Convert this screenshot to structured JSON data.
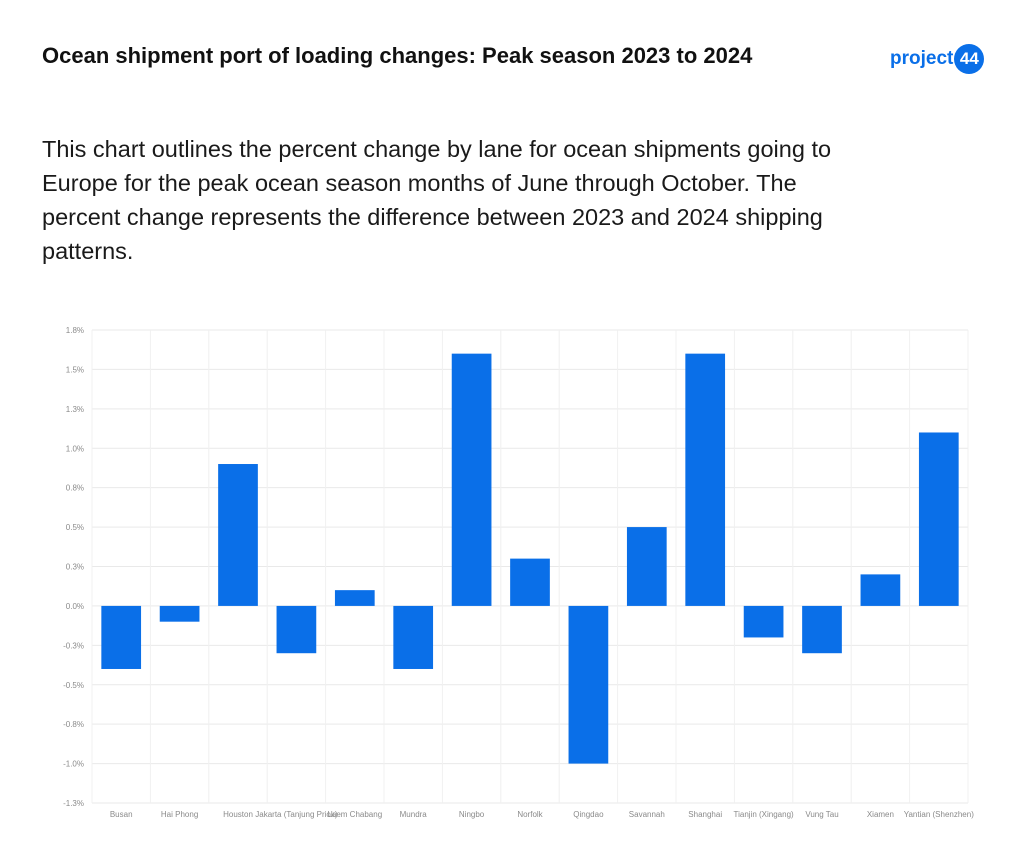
{
  "header": {
    "title": "Ocean shipment port of loading changes: Peak season 2023 to 2024",
    "subtitle": "This chart outlines the percent change by lane for ocean shipments going to Europe for the peak ocean season months of June through October. The percent change represents the difference between 2023 and 2024 shipping patterns."
  },
  "logo": {
    "text": "project",
    "badge": "44",
    "color": "#0a6fe8"
  },
  "chart_data": {
    "type": "bar",
    "categories": [
      "Busan",
      "Hai Phong",
      "Houston",
      "Jakarta (Tanjung Priok)",
      "Laem Chabang",
      "Mundra",
      "Ningbo",
      "Norfolk",
      "Qingdao",
      "Savannah",
      "Shanghai",
      "Tianjin (Xingang)",
      "Vung Tau",
      "Xiamen",
      "Yantian (Shenzhen)"
    ],
    "values": [
      -0.4,
      -0.1,
      0.9,
      -0.3,
      0.1,
      -0.4,
      1.6,
      0.3,
      -1.0,
      0.5,
      1.6,
      -0.2,
      -0.3,
      0.2,
      1.1
    ],
    "ylim": [
      -1.25,
      1.75
    ],
    "yticks": [
      1.75,
      1.5,
      1.25,
      1.0,
      0.75,
      0.5,
      0.25,
      0.0,
      -0.25,
      -0.5,
      -0.75,
      -1.0,
      -1.25
    ],
    "ytick_labels": [
      "1.8%",
      "1.5%",
      "1.3%",
      "1.0%",
      "0.8%",
      "0.5%",
      "0.3%",
      "0.0%",
      "-0.3%",
      "-0.5%",
      "-0.8%",
      "-1.0%",
      "-1.3%"
    ],
    "bar_color": "#0a6fe8",
    "grid": true,
    "title": "",
    "xlabel": "",
    "ylabel": ""
  }
}
